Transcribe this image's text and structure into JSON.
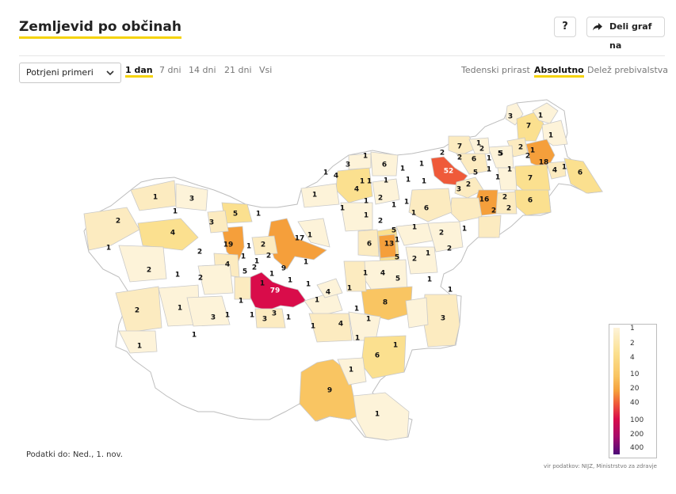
{
  "header": {
    "title": "Zemljevid po občinah",
    "help_label": "?",
    "share_label": "Deli graf na"
  },
  "controls": {
    "select_value": "Potrjeni primeri",
    "periods": [
      {
        "label": "1 dan",
        "active": true
      },
      {
        "label": "7 dni",
        "active": false
      },
      {
        "label": "14 dni",
        "active": false
      },
      {
        "label": "21 dni",
        "active": false
      },
      {
        "label": "Vsi",
        "active": false
      }
    ],
    "modes": [
      {
        "label": "Tedenski prirast",
        "active": false
      },
      {
        "label": "Absolutno",
        "active": true
      },
      {
        "label": "Delež prebivalstva",
        "active": false
      }
    ]
  },
  "map": {
    "colors": {
      "none": "#ffffff",
      "c1": "#fdf3d9",
      "c2": "#fcebc0",
      "c4": "#fbe08f",
      "c10": "#f9c562",
      "c20": "#f59f3b",
      "c40": "#ef5a3a",
      "c100": "#d90c4a",
      "border": "#bdbdbd"
    },
    "labels": [
      "3",
      "7",
      "1",
      "1",
      "7",
      "2",
      "1",
      "5",
      "2",
      "1",
      "2",
      "2",
      "6",
      "1",
      "2",
      "18",
      "4",
      "1",
      "6",
      "1",
      "52",
      "5",
      "1",
      "1",
      "7",
      "1",
      "4",
      "1",
      "6",
      "1",
      "5",
      "1",
      "1",
      "1",
      "1",
      "3",
      "2",
      "6",
      "16",
      "2",
      "6",
      "1",
      "1",
      "3",
      "1",
      "1",
      "1",
      "2",
      "1",
      "2",
      "2",
      "1",
      "2",
      "4",
      "1",
      "1",
      "2",
      "1",
      "1",
      "5",
      "1",
      "3",
      "5",
      "6",
      "13",
      "2",
      "1",
      "17",
      "1",
      "19",
      "1",
      "2",
      "2",
      "2",
      "5",
      "2",
      "1",
      "9",
      "1",
      "1",
      "4",
      "1",
      "2",
      "5",
      "1",
      "1",
      "1",
      "2",
      "4",
      "2",
      "1",
      "1",
      "5",
      "1",
      "79",
      "1",
      "1",
      "1",
      "4",
      "1",
      "1",
      "8",
      "1",
      "2",
      "1",
      "3",
      "1",
      "1",
      "3",
      "1",
      "3",
      "1",
      "1",
      "1",
      "4",
      "1",
      "6",
      "1",
      "1",
      "3",
      "9",
      "1",
      "1",
      "1"
    ]
  },
  "legend": {
    "stops": [
      "1",
      "2",
      "4",
      "10",
      "20",
      "40",
      "100",
      "200",
      "400"
    ]
  },
  "footer": {
    "date_note": "Podatki do: Ned., 1. nov.",
    "source": "vir podatkov: NIJZ, Ministrstvo za zdravje"
  }
}
